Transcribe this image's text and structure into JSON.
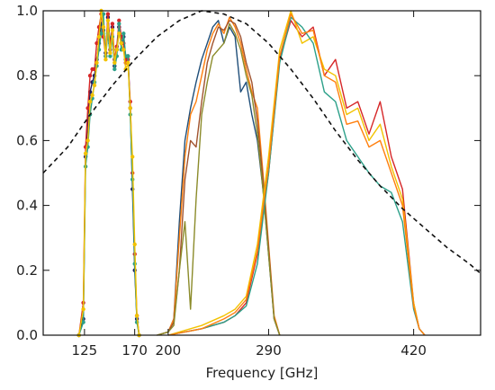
{
  "chart_data": {
    "type": "line",
    "xlabel": "Frequency [GHz]",
    "ylabel": "",
    "x_ticks": [
      125,
      170,
      200,
      290,
      420
    ],
    "x_tick_labels": [
      "125",
      "170",
      "200",
      "290",
      "420"
    ],
    "y_ticks": [
      0.0,
      0.2,
      0.4,
      0.6,
      0.8,
      1.0
    ],
    "y_tick_labels": [
      "0.0",
      "0.2",
      "0.4",
      "0.6",
      "0.8",
      "1.0"
    ],
    "xlim": [
      88,
      480
    ],
    "ylim": [
      0,
      1.0
    ],
    "grid": false,
    "legend": "none",
    "series": [
      {
        "band": 150,
        "color": "#1f1f5f",
        "style": "dots",
        "x": [
          120,
          124,
          126,
          128,
          130,
          132,
          134,
          136,
          138,
          140,
          142,
          144,
          146,
          148,
          150,
          152,
          154,
          156,
          158,
          160,
          162,
          164,
          166,
          168,
          170,
          172,
          174
        ],
        "y": [
          0.0,
          0.05,
          0.55,
          0.66,
          0.75,
          0.78,
          0.8,
          0.85,
          0.9,
          0.96,
          0.94,
          0.87,
          0.98,
          0.9,
          0.95,
          0.83,
          0.88,
          0.95,
          0.9,
          0.92,
          0.85,
          0.86,
          0.7,
          0.45,
          0.2,
          0.05,
          0.0
        ]
      },
      {
        "band": 150,
        "color": "#d62728",
        "style": "dots",
        "x": [
          120,
          124,
          126,
          128,
          130,
          132,
          134,
          136,
          138,
          140,
          142,
          144,
          146,
          148,
          150,
          152,
          154,
          156,
          158,
          160,
          162,
          164,
          166,
          168,
          170,
          172,
          174
        ],
        "y": [
          0.0,
          0.1,
          0.58,
          0.7,
          0.8,
          0.82,
          0.82,
          0.9,
          0.95,
          0.99,
          0.92,
          0.86,
          0.99,
          0.88,
          0.96,
          0.85,
          0.89,
          0.97,
          0.92,
          0.9,
          0.84,
          0.85,
          0.72,
          0.5,
          0.25,
          0.06,
          0.0
        ]
      },
      {
        "band": 150,
        "color": "#2ca089",
        "style": "dots",
        "x": [
          120,
          124,
          126,
          128,
          130,
          132,
          134,
          136,
          138,
          140,
          142,
          144,
          146,
          148,
          150,
          152,
          154,
          156,
          158,
          160,
          162,
          164,
          166,
          168,
          170,
          172,
          174
        ],
        "y": [
          0.0,
          0.04,
          0.52,
          0.58,
          0.68,
          0.73,
          0.78,
          0.83,
          0.88,
          0.93,
          0.99,
          0.86,
          0.93,
          0.86,
          0.92,
          0.82,
          0.86,
          0.96,
          0.88,
          0.93,
          0.86,
          0.86,
          0.68,
          0.48,
          0.22,
          0.04,
          0.0
        ]
      },
      {
        "band": 150,
        "color": "#f2c200",
        "style": "dots",
        "x": [
          120,
          124,
          126,
          128,
          130,
          132,
          134,
          136,
          138,
          140,
          142,
          144,
          146,
          148,
          150,
          152,
          154,
          156,
          158,
          160,
          162,
          164,
          166,
          168,
          170,
          172,
          174
        ],
        "y": [
          0.0,
          0.08,
          0.56,
          0.6,
          0.72,
          0.74,
          0.77,
          0.84,
          0.92,
          1.0,
          0.95,
          0.85,
          0.97,
          0.87,
          0.94,
          0.84,
          0.88,
          0.93,
          0.9,
          0.88,
          0.82,
          0.84,
          0.7,
          0.55,
          0.28,
          0.06,
          0.0
        ]
      },
      {
        "band": 220,
        "color": "#1f4e79",
        "style": "line",
        "x": [
          190,
          200,
          205,
          210,
          215,
          220,
          225,
          230,
          235,
          240,
          245,
          250,
          255,
          260,
          265,
          270,
          275,
          280,
          285,
          290,
          295,
          300
        ],
        "y": [
          0.0,
          0.01,
          0.05,
          0.35,
          0.6,
          0.7,
          0.78,
          0.85,
          0.9,
          0.95,
          0.97,
          0.9,
          0.95,
          0.92,
          0.75,
          0.78,
          0.68,
          0.6,
          0.45,
          0.25,
          0.05,
          0.0
        ]
      },
      {
        "band": 220,
        "color": "#ff7f0e",
        "style": "line",
        "x": [
          190,
          200,
          205,
          210,
          215,
          220,
          225,
          230,
          235,
          240,
          245,
          250,
          255,
          260,
          265,
          270,
          275,
          280,
          285,
          290,
          295,
          300
        ],
        "y": [
          0.0,
          0.01,
          0.05,
          0.3,
          0.55,
          0.68,
          0.72,
          0.8,
          0.88,
          0.93,
          0.96,
          0.93,
          0.98,
          0.95,
          0.9,
          0.82,
          0.75,
          0.7,
          0.5,
          0.28,
          0.06,
          0.0
        ]
      },
      {
        "band": 220,
        "color": "#a0522d",
        "style": "line",
        "x": [
          190,
          200,
          205,
          210,
          215,
          220,
          225,
          230,
          235,
          240,
          245,
          250,
          255,
          260,
          265,
          270,
          275,
          280,
          285,
          290,
          295,
          300
        ],
        "y": [
          0.0,
          0.01,
          0.04,
          0.2,
          0.48,
          0.6,
          0.58,
          0.72,
          0.84,
          0.9,
          0.95,
          0.94,
          0.97,
          0.96,
          0.92,
          0.84,
          0.78,
          0.66,
          0.48,
          0.27,
          0.05,
          0.0
        ]
      },
      {
        "band": 220,
        "color": "#8b8b2a",
        "style": "line",
        "x": [
          190,
          200,
          205,
          210,
          215,
          220,
          225,
          230,
          235,
          240,
          245,
          250,
          255,
          260,
          265,
          270,
          275,
          280,
          285,
          290,
          295,
          300
        ],
        "y": [
          0.0,
          0.01,
          0.03,
          0.2,
          0.35,
          0.08,
          0.42,
          0.68,
          0.78,
          0.86,
          0.88,
          0.9,
          0.96,
          0.93,
          0.88,
          0.8,
          0.74,
          0.62,
          0.45,
          0.25,
          0.05,
          0.0
        ]
      },
      {
        "band": 340,
        "color": "#d62728",
        "style": "line",
        "x": [
          200,
          230,
          250,
          260,
          270,
          280,
          290,
          300,
          310,
          320,
          330,
          340,
          350,
          360,
          370,
          380,
          390,
          400,
          410,
          420,
          425,
          430
        ],
        "y": [
          0.0,
          0.02,
          0.04,
          0.06,
          0.1,
          0.25,
          0.5,
          0.85,
          0.97,
          0.92,
          0.95,
          0.8,
          0.85,
          0.7,
          0.72,
          0.62,
          0.72,
          0.55,
          0.45,
          0.1,
          0.02,
          0.0
        ]
      },
      {
        "band": 340,
        "color": "#f2c200",
        "style": "line",
        "x": [
          200,
          230,
          250,
          260,
          270,
          280,
          290,
          300,
          310,
          320,
          330,
          340,
          350,
          360,
          370,
          380,
          390,
          400,
          410,
          420,
          425,
          430
        ],
        "y": [
          0.0,
          0.03,
          0.06,
          0.08,
          0.12,
          0.28,
          0.55,
          0.88,
          1.0,
          0.9,
          0.92,
          0.82,
          0.8,
          0.68,
          0.7,
          0.6,
          0.65,
          0.52,
          0.42,
          0.1,
          0.02,
          0.0
        ]
      },
      {
        "band": 340,
        "color": "#2ca089",
        "style": "line",
        "x": [
          200,
          230,
          250,
          260,
          270,
          280,
          290,
          300,
          310,
          320,
          330,
          340,
          350,
          360,
          370,
          380,
          390,
          400,
          410,
          420,
          425,
          430
        ],
        "y": [
          0.0,
          0.02,
          0.04,
          0.06,
          0.09,
          0.22,
          0.5,
          0.84,
          0.98,
          0.95,
          0.9,
          0.75,
          0.72,
          0.6,
          0.55,
          0.5,
          0.46,
          0.44,
          0.35,
          0.08,
          0.02,
          0.0
        ]
      },
      {
        "band": 340,
        "color": "#ff7f0e",
        "style": "line",
        "x": [
          200,
          230,
          250,
          260,
          270,
          280,
          290,
          300,
          310,
          320,
          330,
          340,
          350,
          360,
          370,
          380,
          390,
          400,
          410,
          420,
          425,
          430
        ],
        "y": [
          0.0,
          0.02,
          0.05,
          0.07,
          0.11,
          0.26,
          0.52,
          0.86,
          0.99,
          0.93,
          0.94,
          0.8,
          0.78,
          0.65,
          0.66,
          0.58,
          0.6,
          0.5,
          0.4,
          0.09,
          0.02,
          0.0
        ]
      },
      {
        "band": "atm",
        "color": "#111111",
        "style": "dashed",
        "x": [
          88,
          110,
          130,
          150,
          170,
          190,
          210,
          230,
          250,
          270,
          290,
          310,
          330,
          350,
          370,
          390,
          410,
          430,
          450,
          470,
          480
        ],
        "y": [
          0.5,
          0.58,
          0.68,
          0.77,
          0.85,
          0.92,
          0.97,
          1.0,
          0.99,
          0.96,
          0.9,
          0.82,
          0.73,
          0.63,
          0.54,
          0.46,
          0.39,
          0.33,
          0.27,
          0.22,
          0.19
        ]
      }
    ]
  }
}
